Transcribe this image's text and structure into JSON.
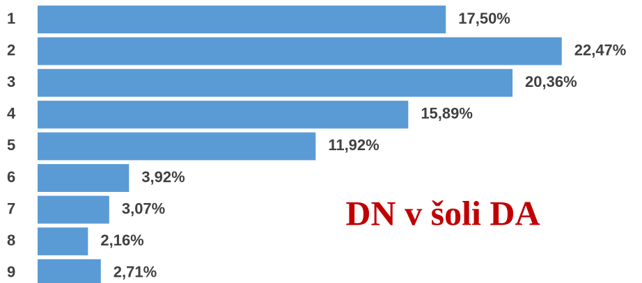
{
  "chart_data": {
    "type": "bar",
    "orientation": "horizontal",
    "title": "DN v šoli DA",
    "categories": [
      "1",
      "2",
      "3",
      "4",
      "5",
      "6",
      "7",
      "8",
      "9"
    ],
    "values": [
      17.5,
      22.47,
      20.36,
      15.89,
      11.92,
      3.92,
      3.07,
      2.16,
      2.71
    ],
    "value_labels": [
      "17,50%",
      "22,47%",
      "20,36%",
      "15,89%",
      "11,92%",
      "3,92%",
      "3,07%",
      "2,16%",
      "2,71%"
    ],
    "color": "#5b9bd5"
  }
}
